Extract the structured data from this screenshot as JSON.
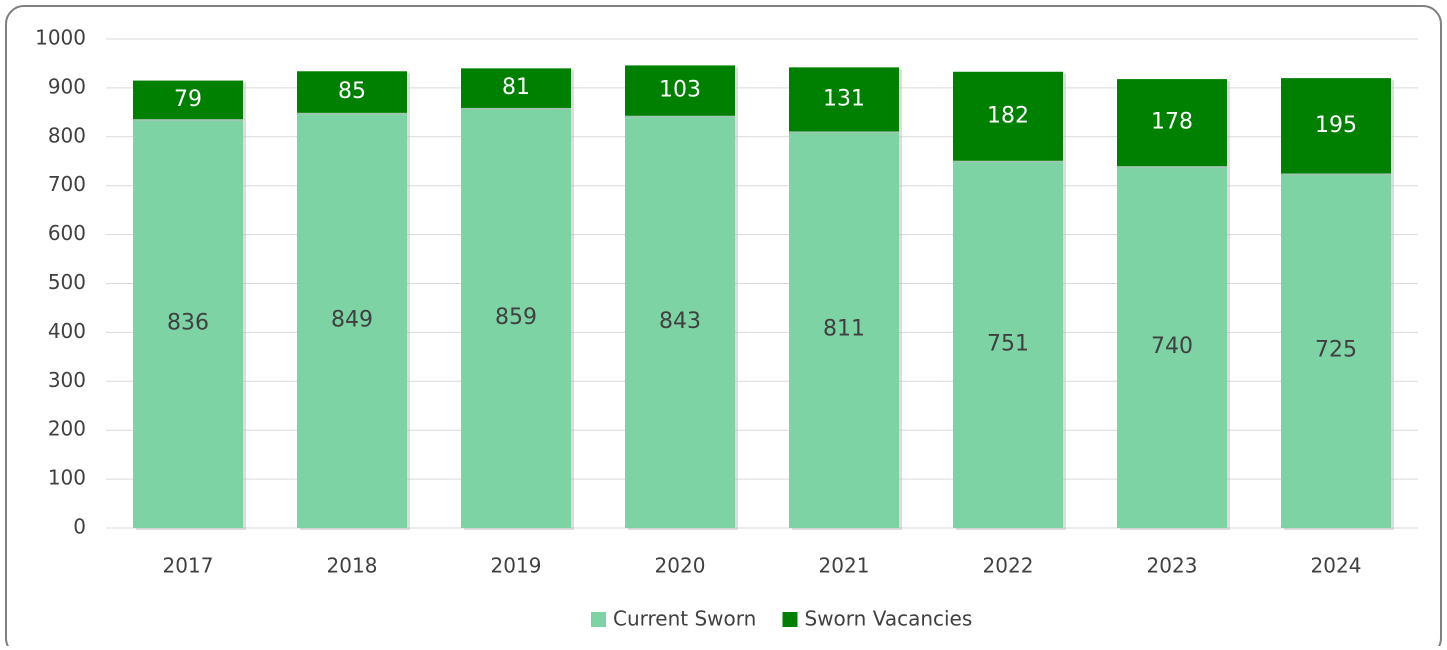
{
  "chart_data": {
    "type": "bar",
    "stacked": true,
    "categories": [
      "2017",
      "2018",
      "2019",
      "2020",
      "2021",
      "2022",
      "2023",
      "2024"
    ],
    "series": [
      {
        "name": "Current Sworn",
        "color": "#7dd3a4",
        "values": [
          836,
          849,
          859,
          843,
          811,
          751,
          740,
          725
        ]
      },
      {
        "name": "Sworn Vacancies",
        "color": "#008000",
        "values": [
          79,
          85,
          81,
          103,
          131,
          182,
          178,
          195
        ]
      }
    ],
    "ylim": [
      0,
      1000
    ],
    "yticks": [
      0,
      100,
      200,
      300,
      400,
      500,
      600,
      700,
      800,
      900,
      1000
    ],
    "grid": true,
    "legend": "bottom"
  }
}
